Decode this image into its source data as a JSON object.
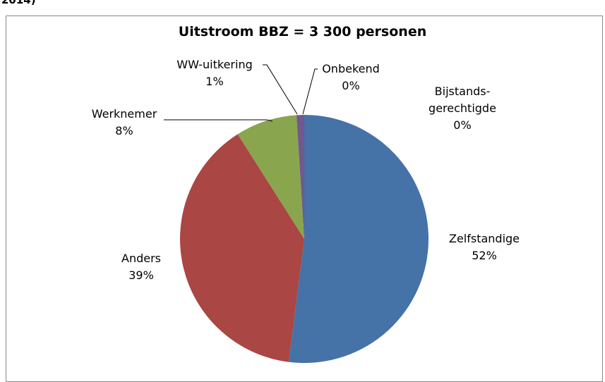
{
  "header": {
    "text": "2014)"
  },
  "chart_data": {
    "type": "pie",
    "title": "Uitstroom BBZ = 3 300 personen",
    "categories": [
      "Zelfstandige",
      "Anders",
      "Werknemer",
      "WW-uitkering",
      "Onbekend",
      "Bijstands-gerechtigde"
    ],
    "values": [
      52,
      39,
      8,
      1,
      0,
      0
    ],
    "value_labels": [
      "52%",
      "39%",
      "8%",
      "1%",
      "0%",
      "0%"
    ],
    "colors": [
      "#4572a7",
      "#aa4643",
      "#89a54e",
      "#71588f",
      "#4198af",
      "#db843d"
    ]
  }
}
